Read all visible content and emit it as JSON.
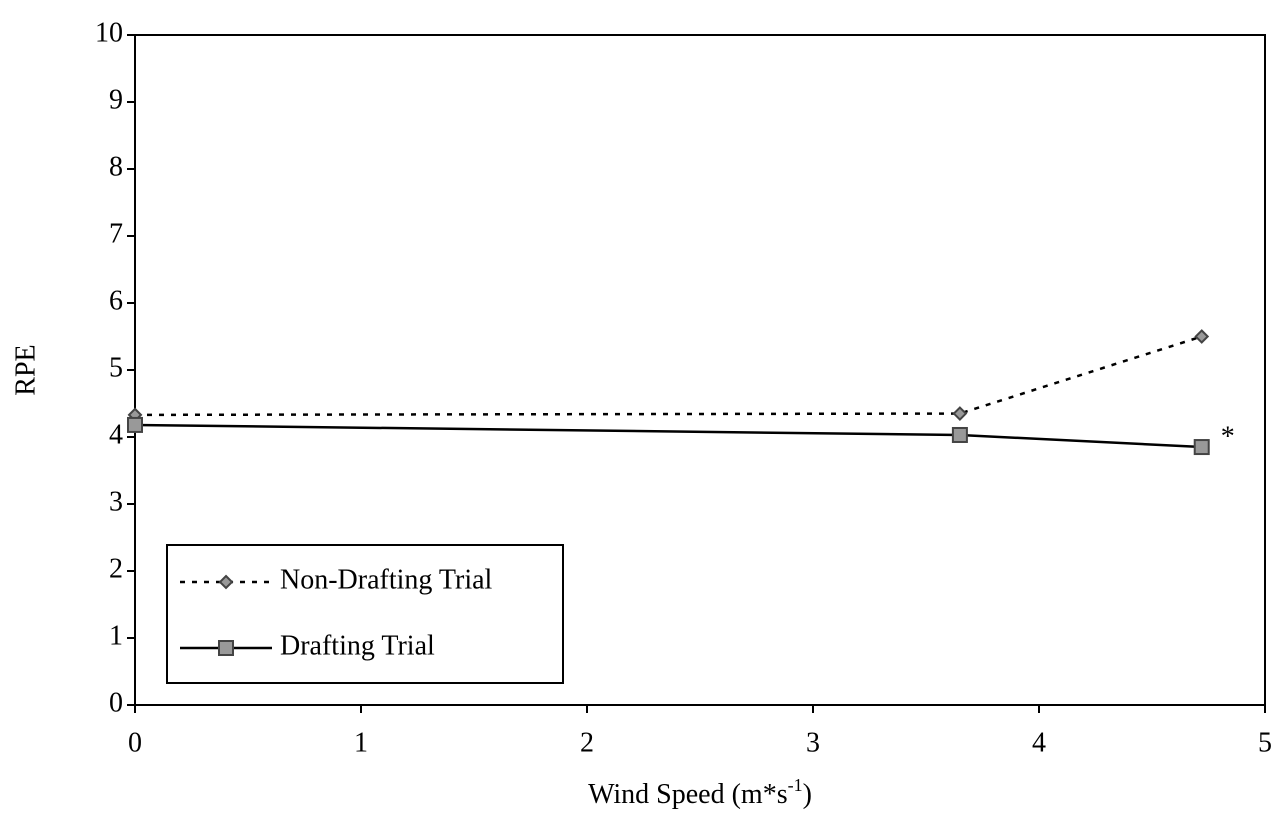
{
  "chart_data": {
    "type": "line",
    "x": [
      0,
      3.65,
      4.72
    ],
    "series": [
      {
        "name": "Non-Drafting Trial",
        "color": "#000000",
        "marker": "diamond",
        "dash": "dotted",
        "values": [
          4.33,
          4.35,
          5.5
        ]
      },
      {
        "name": "Drafting Trial",
        "color": "#000000",
        "marker": "square",
        "dash": "solid",
        "values": [
          4.18,
          4.03,
          3.85
        ]
      }
    ],
    "x_label": [
      "Wind Speed (m*s",
      "-1",
      ")"
    ],
    "y_label": "RPE",
    "xlim": [
      0,
      5
    ],
    "xticks": [
      0,
      1,
      2,
      3,
      4,
      5
    ],
    "ylim": [
      0,
      10
    ],
    "yticks": [
      0,
      1,
      2,
      3,
      4,
      5,
      6,
      7,
      8,
      9,
      10
    ],
    "annotations": [
      {
        "text": "*",
        "x": 4.72,
        "y": 3.85
      }
    ],
    "grid": false,
    "legend": "lower left"
  }
}
